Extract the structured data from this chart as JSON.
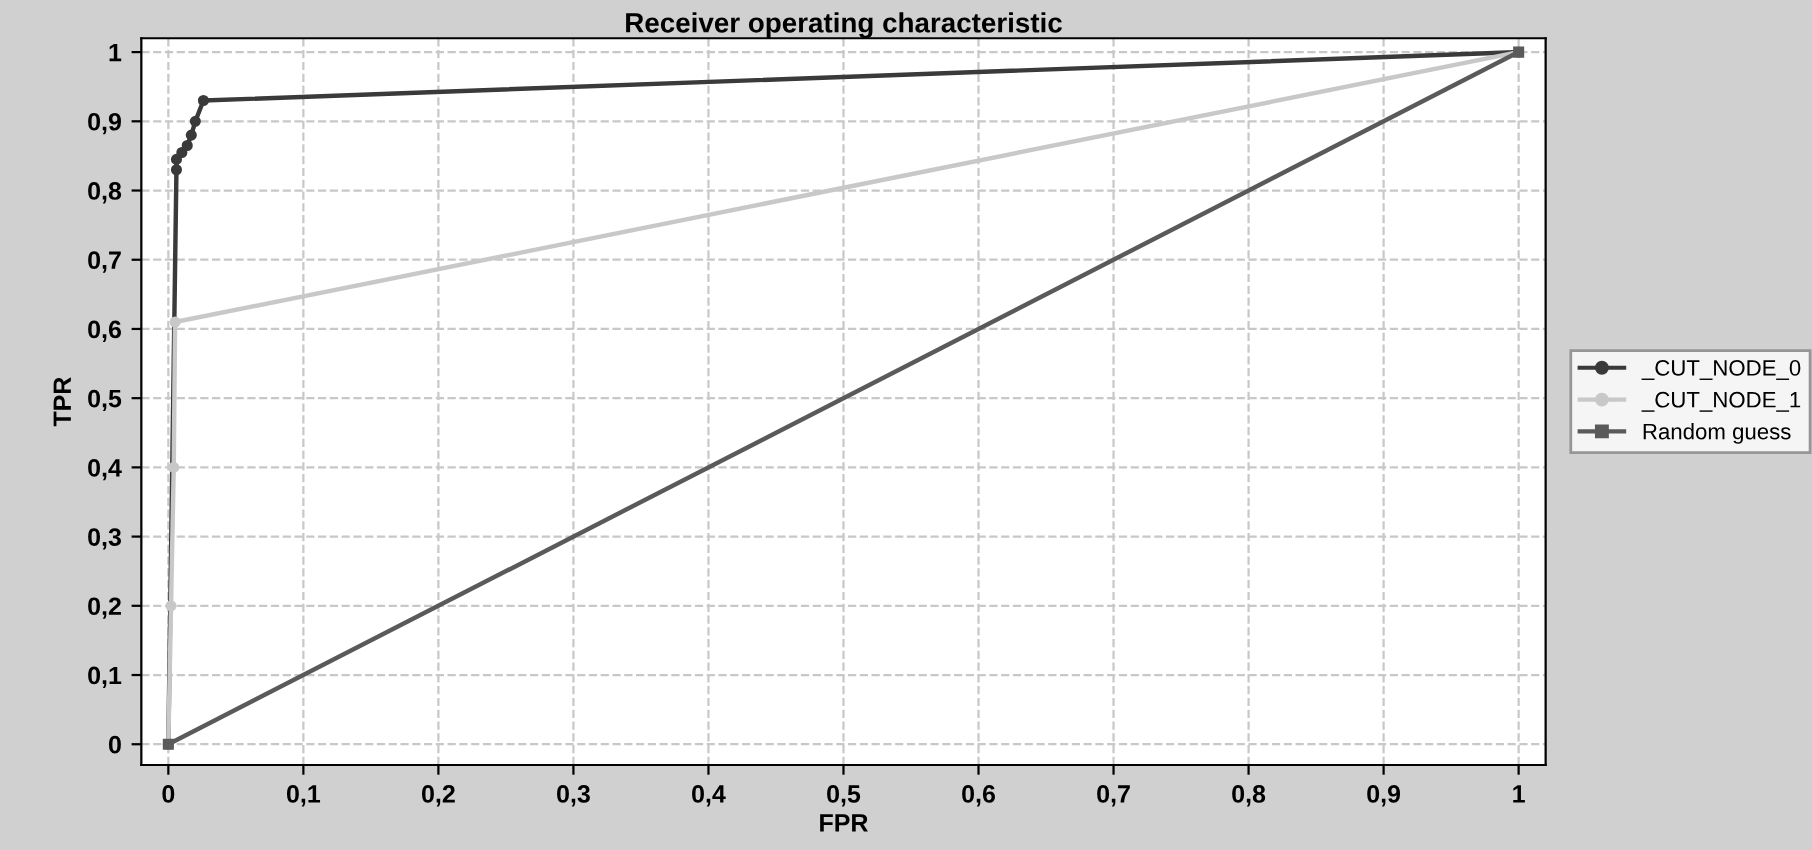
{
  "chart_data": {
    "type": "line",
    "title": "Receiver operating characteristic",
    "xlabel": "FPR",
    "ylabel": "TPR",
    "xlim": [
      -0.02,
      1.02
    ],
    "ylim": [
      -0.03,
      1.02
    ],
    "xticks": [
      0,
      {
        "value": 0.1,
        "label": "0,1"
      },
      {
        "value": 0.2,
        "label": "0,2"
      },
      {
        "value": 0.3,
        "label": "0,3"
      },
      {
        "value": 0.4,
        "label": "0,4"
      },
      {
        "value": 0.5,
        "label": "0,5"
      },
      {
        "value": 0.6,
        "label": "0,6"
      },
      {
        "value": 0.7,
        "label": "0,7"
      },
      {
        "value": 0.8,
        "label": "0,8"
      },
      {
        "value": 0.9,
        "label": "0,9"
      },
      1
    ],
    "yticks": [
      0,
      {
        "value": 0.1,
        "label": "0,1"
      },
      {
        "value": 0.2,
        "label": "0,2"
      },
      {
        "value": 0.3,
        "label": "0,3"
      },
      {
        "value": 0.4,
        "label": "0,4"
      },
      {
        "value": 0.5,
        "label": "0,5"
      },
      {
        "value": 0.6,
        "label": "0,6"
      },
      {
        "value": 0.7,
        "label": "0,7"
      },
      {
        "value": 0.8,
        "label": "0,8"
      },
      {
        "value": 0.9,
        "label": "0,9"
      },
      1
    ],
    "grid": true,
    "legend": "right",
    "line_style": "solid",
    "series": [
      {
        "name": "_CUT_NODE_0",
        "color": "#3a3a3a",
        "marker": "circle",
        "x": [
          0,
          0.006,
          0.006,
          0.01,
          0.014,
          0.017,
          0.02,
          0.026,
          1
        ],
        "values": [
          0,
          0.83,
          0.845,
          0.855,
          0.865,
          0.88,
          0.9,
          0.93,
          1
        ]
      },
      {
        "name": "_CUT_NODE_1",
        "color": "#c8c8c8",
        "marker": "circle",
        "x": [
          0,
          0.002,
          0.004,
          0.005,
          1
        ],
        "values": [
          0,
          0.2,
          0.4,
          0.61,
          1
        ]
      },
      {
        "name": "Random guess",
        "color": "#5a5a5a",
        "marker": "square",
        "x": [
          0,
          1
        ],
        "values": [
          0,
          1
        ]
      }
    ]
  }
}
